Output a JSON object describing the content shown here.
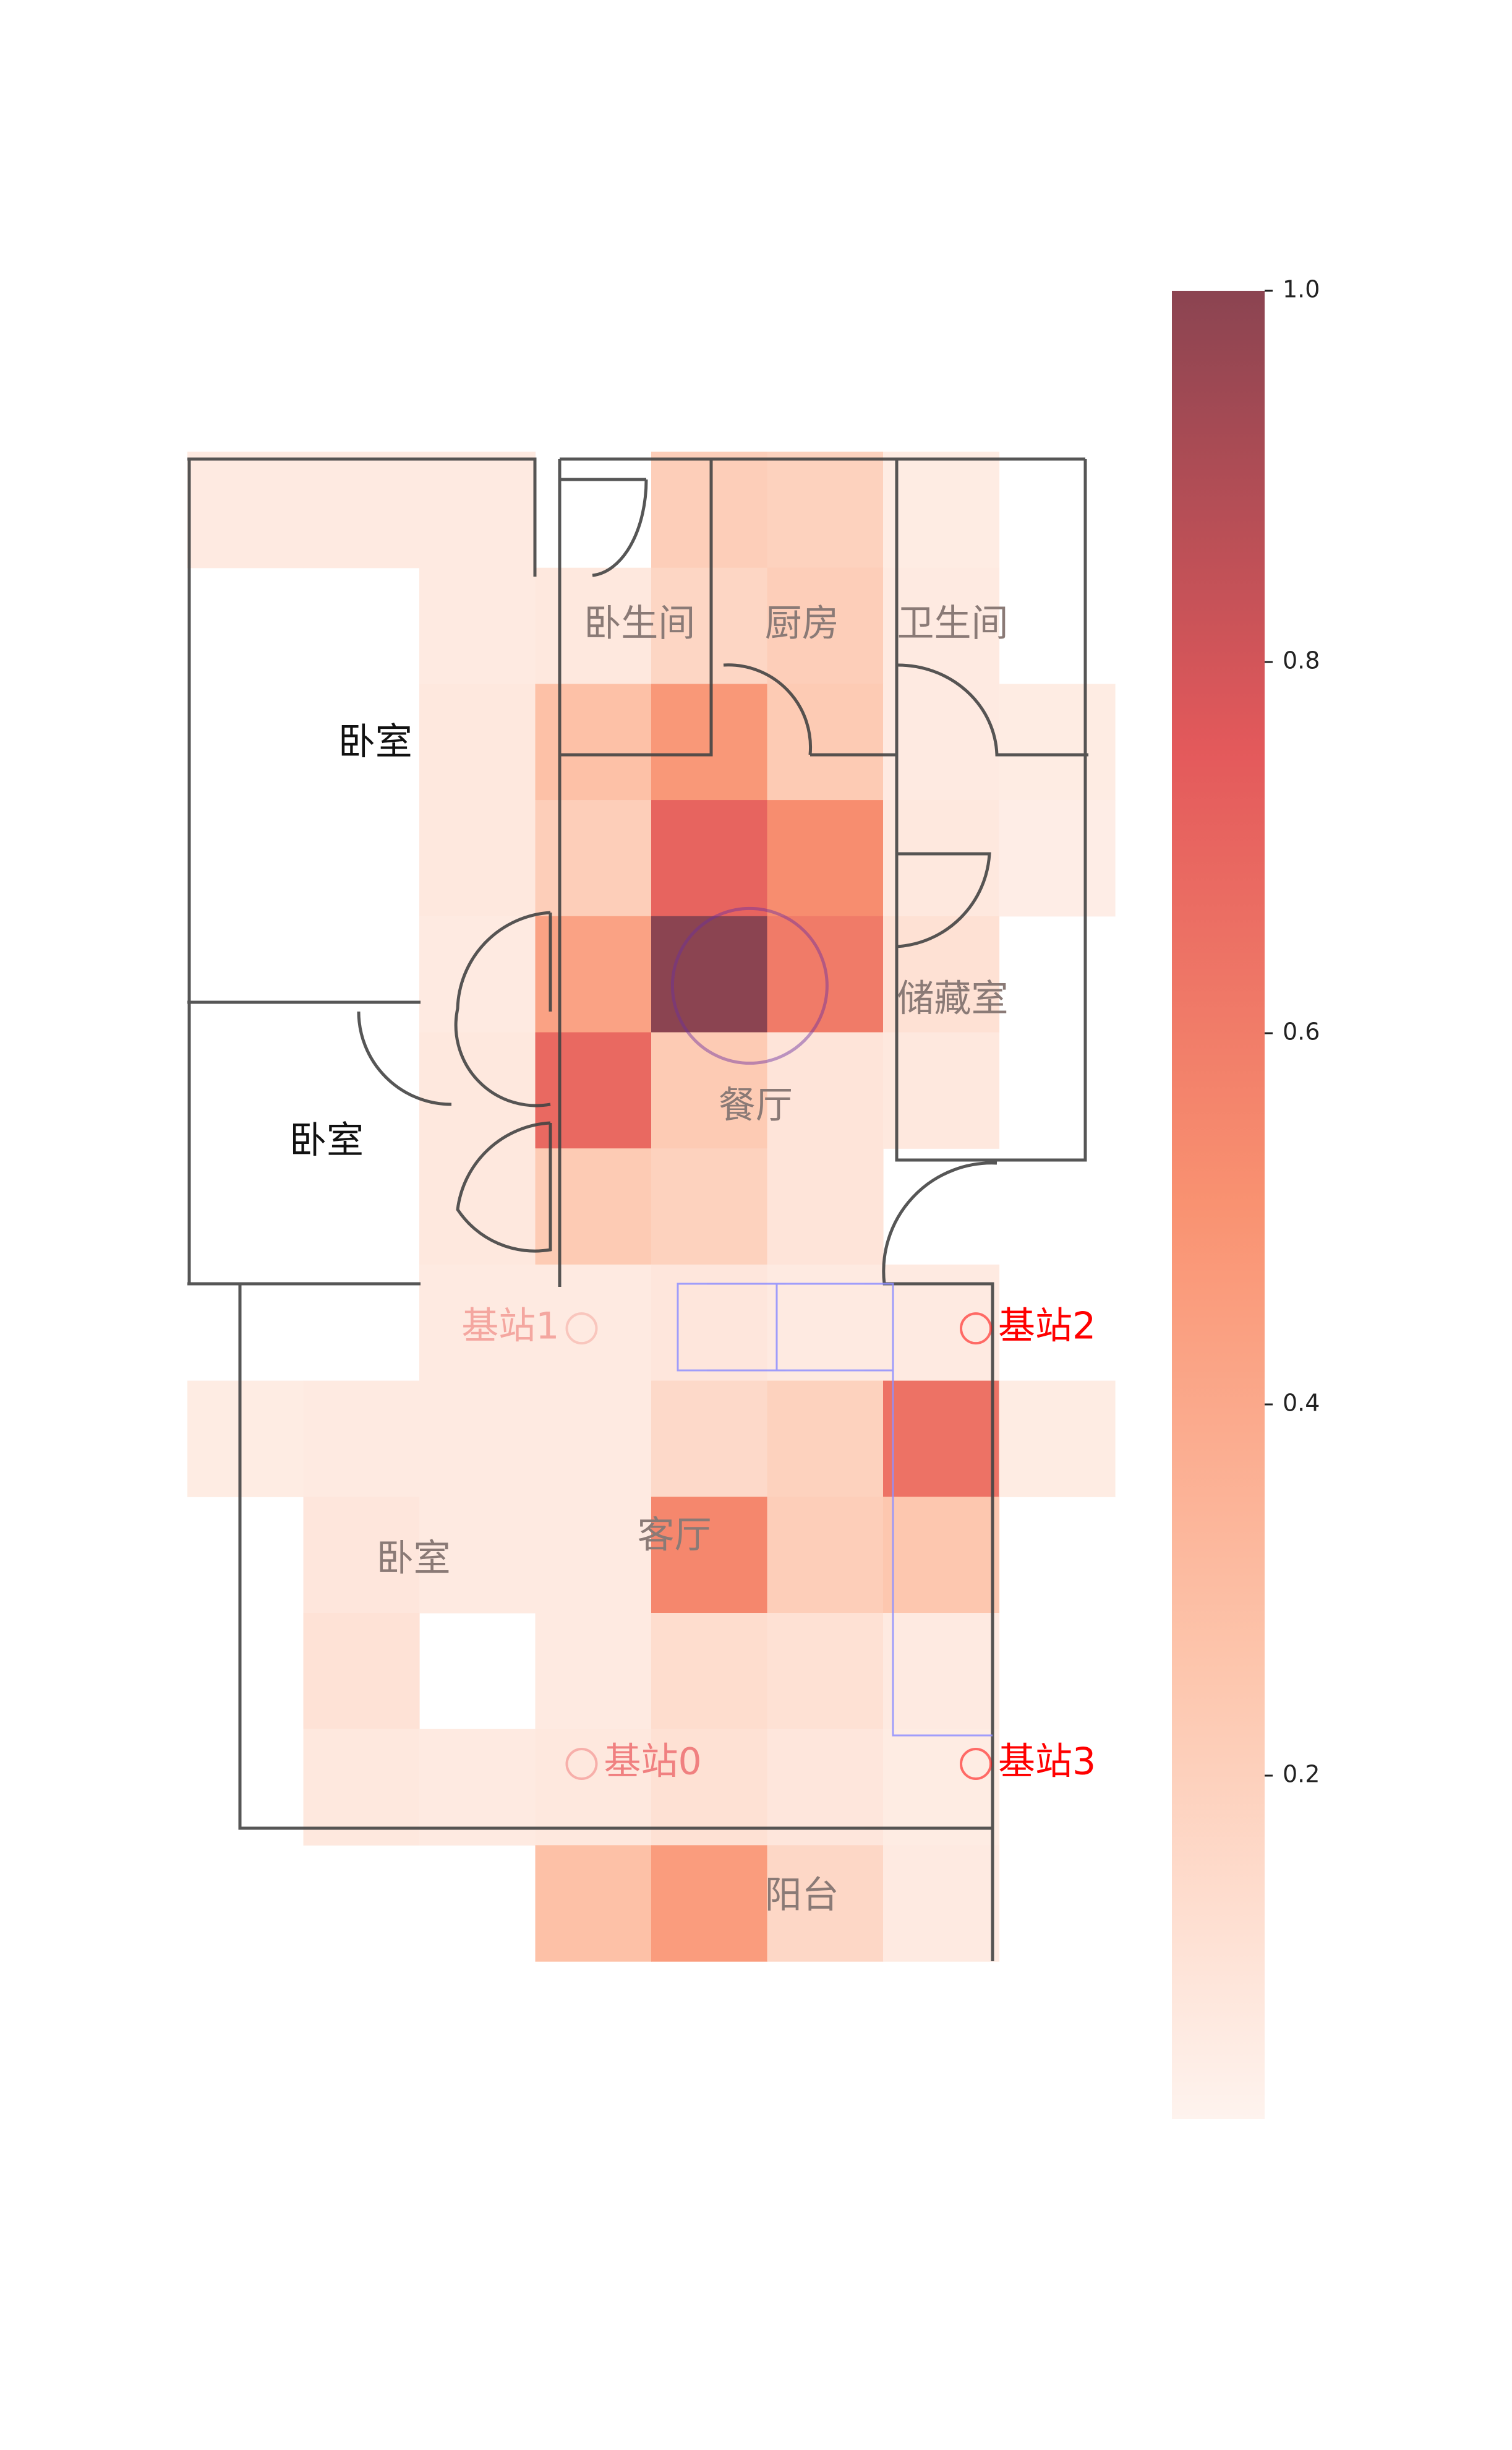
{
  "chart_data": {
    "type": "heatmap",
    "colorscale": {
      "range": [
        0,
        1
      ],
      "ticks": [
        "1.0",
        "0.8",
        "0.6",
        "0.4",
        "0.2"
      ],
      "colors": [
        "#fef3ee",
        "#fdc5ac",
        "#f99271",
        "#e3595b",
        "#8b4451"
      ]
    },
    "columns": 8,
    "rows": 13,
    "values": [
      [
        0.05,
        0.05,
        0.05,
        null,
        0.2,
        0.18,
        0.04,
        null
      ],
      [
        null,
        null,
        0.05,
        0.06,
        0.16,
        0.2,
        0.05,
        null
      ],
      [
        null,
        null,
        0.06,
        0.27,
        0.47,
        0.22,
        0.05,
        0.04
      ],
      [
        null,
        null,
        0.06,
        0.2,
        0.7,
        0.52,
        0.06,
        0.03
      ],
      [
        null,
        null,
        0.05,
        0.42,
        1.0,
        0.6,
        0.1,
        null
      ],
      [
        null,
        null,
        0.06,
        0.68,
        0.22,
        0.08,
        0.06,
        null
      ],
      [
        null,
        null,
        0.06,
        0.22,
        0.18,
        0.08,
        null,
        null
      ],
      [
        null,
        null,
        0.05,
        0.05,
        0.07,
        0.05,
        0.05,
        null
      ],
      [
        0.04,
        0.05,
        0.05,
        0.05,
        0.14,
        0.18,
        0.64,
        0.04
      ],
      [
        null,
        0.07,
        0.05,
        0.05,
        0.55,
        0.2,
        0.24,
        null
      ],
      [
        null,
        0.09,
        null,
        0.05,
        0.12,
        0.1,
        0.05,
        null
      ],
      [
        null,
        0.06,
        0.05,
        0.06,
        0.1,
        0.07,
        0.04,
        null
      ],
      [
        null,
        null,
        null,
        0.27,
        0.45,
        0.15,
        0.05,
        null
      ]
    ],
    "rooms": [
      {
        "name": "卧室",
        "col": 1.62,
        "row": 2.52,
        "tone": "dark"
      },
      {
        "name": "卧室",
        "col": 1.2,
        "row": 5.95,
        "tone": "dark"
      },
      {
        "name": "卧室",
        "col": 1.95,
        "row": 9.55,
        "tone": "light"
      },
      {
        "name": "卧生间",
        "col": 3.9,
        "row": 1.5,
        "tone": "light"
      },
      {
        "name": "厨房",
        "col": 5.3,
        "row": 1.5,
        "tone": "light"
      },
      {
        "name": "卫生间",
        "col": 6.6,
        "row": 1.5,
        "tone": "light"
      },
      {
        "name": "储藏室",
        "col": 6.6,
        "row": 4.73,
        "tone": "light"
      },
      {
        "name": "餐厅",
        "col": 4.9,
        "row": 5.65,
        "tone": "light"
      },
      {
        "name": "客厅",
        "col": 4.2,
        "row": 9.35,
        "tone": "light"
      },
      {
        "name": "阳台",
        "col": 5.3,
        "row": 12.45,
        "tone": "light"
      }
    ],
    "stations": [
      {
        "name": "基站0",
        "col": 3.4,
        "row": 11.3,
        "label_side": "right",
        "color": "#f08080"
      },
      {
        "name": "基站1",
        "col": 3.4,
        "row": 7.55,
        "label_side": "left",
        "color": "#f4a7a0"
      },
      {
        "name": "基站2",
        "col": 6.8,
        "row": 7.55,
        "label_side": "right",
        "color": "#ff0000"
      },
      {
        "name": "基站3",
        "col": 6.8,
        "row": 11.3,
        "label_side": "right",
        "color": "#ff0000"
      }
    ],
    "estimate": {
      "col": 4.85,
      "row": 4.6
    }
  }
}
